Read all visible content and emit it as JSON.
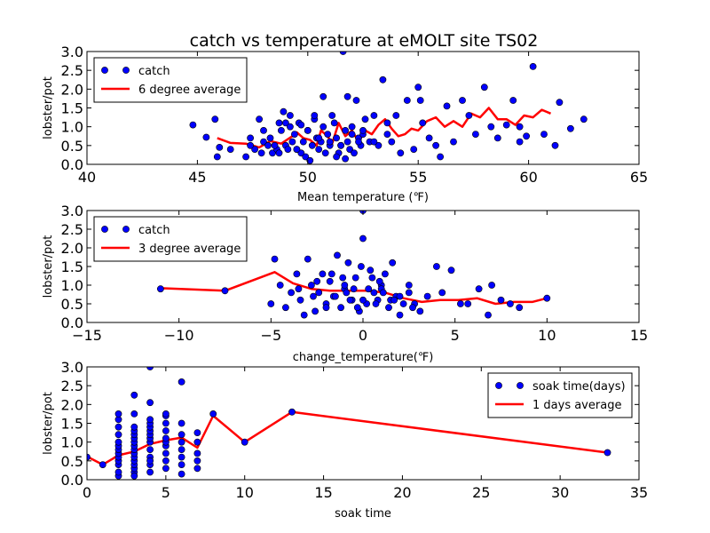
{
  "figure": {
    "title": "catch vs temperature at eMOLT site TS02"
  },
  "colors": {
    "points": "#0000ff",
    "line": "#ff0000",
    "frame": "#000000",
    "background": "#ffffff"
  },
  "chart_data": [
    {
      "type": "scatter",
      "xlabel": "Mean temperature (℉)",
      "ylabel": "lobster/pot",
      "xlim": [
        40,
        65
      ],
      "ylim": [
        0,
        3
      ],
      "xticks": [
        "40",
        "45",
        "50",
        "55",
        "60",
        "65"
      ],
      "yticks": [
        "0.0",
        "0.5",
        "1.0",
        "1.5",
        "2.0",
        "2.5",
        "3.0"
      ],
      "legend": {
        "position": "top-left",
        "entries": [
          "catch",
          "6 degree average"
        ]
      },
      "series": [
        {
          "name": "catch",
          "kind": "points",
          "x": [
            44.8,
            45.4,
            45.9,
            46.0,
            45.8,
            46.5,
            47.2,
            47.4,
            47.6,
            47.8,
            47.9,
            48.0,
            48.2,
            48.3,
            48.4,
            48.6,
            48.7,
            48.8,
            48.9,
            49.0,
            49.1,
            49.2,
            49.3,
            49.4,
            49.5,
            49.6,
            49.7,
            49.8,
            49.9,
            50.0,
            50.1,
            50.2,
            50.3,
            50.4,
            50.5,
            50.6,
            50.7,
            50.8,
            50.9,
            51.0,
            51.1,
            51.2,
            51.3,
            51.4,
            51.5,
            51.6,
            51.7,
            51.8,
            51.9,
            52.0,
            52.1,
            52.2,
            52.3,
            52.4,
            52.5,
            52.6,
            52.8,
            53.0,
            53.2,
            53.4,
            53.6,
            53.8,
            54.0,
            54.2,
            54.5,
            54.8,
            55.0,
            55.2,
            55.5,
            55.8,
            56.0,
            56.3,
            56.6,
            57.0,
            57.3,
            57.6,
            58.0,
            58.3,
            58.6,
            59.0,
            59.3,
            59.6,
            59.9,
            60.2,
            60.7,
            61.2,
            61.4,
            61.9,
            62.5,
            51.7,
            50.7,
            49.7,
            53.6,
            55.1,
            59.6,
            48.0,
            47.4,
            49.0,
            50.0,
            51.0,
            52.0,
            53.0,
            51.5,
            50.5,
            49.5,
            48.5,
            52.5,
            48.7,
            50.3,
            51.3,
            52.3,
            49.2,
            51.8
          ],
          "y": [
            1.05,
            0.72,
            0.2,
            0.45,
            1.2,
            0.4,
            0.2,
            0.7,
            0.4,
            1.2,
            0.3,
            0.6,
            0.5,
            0.7,
            0.3,
            0.4,
            0.3,
            0.9,
            1.4,
            0.5,
            0.4,
            1.3,
            0.6,
            0.8,
            0.4,
            1.1,
            0.3,
            0.6,
            0.2,
            0.9,
            0.1,
            0.5,
            1.2,
            0.7,
            0.4,
            0.6,
            1.0,
            0.3,
            0.8,
            0.5,
            1.3,
            1.1,
            0.7,
            0.3,
            0.5,
            3.0,
            0.9,
            0.6,
            0.4,
            1.0,
            0.3,
            1.7,
            0.7,
            0.5,
            0.8,
            1.2,
            0.6,
            1.3,
            0.5,
            2.25,
            0.8,
            0.6,
            1.3,
            0.3,
            1.7,
            0.4,
            2.05,
            1.1,
            0.7,
            0.5,
            0.2,
            1.55,
            0.6,
            1.7,
            1.3,
            0.8,
            2.05,
            1.0,
            0.7,
            1.05,
            1.7,
            0.6,
            0.75,
            2.6,
            0.8,
            0.5,
            1.65,
            0.95,
            1.2,
            0.15,
            1.8,
            1.05,
            1.1,
            1.7,
            1.0,
            0.9,
            0.5,
            1.1,
            0.9,
            0.6,
            0.8,
            0.6,
            0.5,
            0.7,
            0.4,
            0.5,
            0.9,
            1.1,
            1.3,
            0.2,
            0.6,
            1.0,
            1.8
          ]
        },
        {
          "name": "6 degree average",
          "kind": "line",
          "x": [
            45.9,
            46.5,
            47.2,
            47.8,
            48.3,
            48.8,
            49.3,
            49.5,
            49.8,
            50.1,
            50.4,
            50.6,
            50.9,
            51.1,
            51.4,
            51.7,
            52.0,
            52.3,
            52.6,
            52.9,
            53.2,
            53.5,
            53.8,
            54.1,
            54.4,
            54.7,
            55.0,
            55.4,
            55.8,
            56.2,
            56.6,
            57.0,
            57.4,
            57.8,
            58.2,
            58.6,
            59.0,
            59.4,
            59.8,
            60.2,
            60.6,
            61.0
          ],
          "y": [
            0.7,
            0.57,
            0.55,
            0.45,
            0.62,
            0.55,
            0.75,
            0.85,
            0.7,
            0.65,
            0.5,
            0.9,
            0.75,
            0.55,
            1.1,
            0.75,
            0.9,
            0.6,
            0.9,
            0.8,
            1.05,
            1.2,
            0.95,
            0.75,
            0.8,
            0.95,
            0.9,
            1.15,
            1.25,
            1.0,
            1.15,
            1.0,
            1.35,
            1.25,
            1.5,
            1.2,
            1.2,
            1.05,
            1.3,
            1.25,
            1.45,
            1.35
          ]
        }
      ]
    },
    {
      "type": "scatter",
      "xlabel": "change_temperature(℉)",
      "ylabel": "lobster/pot",
      "xlim": [
        -15,
        15
      ],
      "ylim": [
        0,
        3
      ],
      "xticks": [
        "−15",
        "−10",
        "−5",
        "0",
        "5",
        "10",
        "15"
      ],
      "yticks": [
        "0.0",
        "0.5",
        "1.0",
        "1.5",
        "2.0",
        "2.5",
        "3.0"
      ],
      "legend": {
        "position": "top-left",
        "entries": [
          "catch",
          "3 degree average"
        ]
      },
      "series": [
        {
          "name": "catch",
          "kind": "points",
          "x": [
            -11.0,
            -7.5,
            -5.0,
            -4.8,
            -4.5,
            -4.2,
            -3.9,
            -3.6,
            -3.4,
            -3.2,
            -3.0,
            -2.8,
            -2.6,
            -2.4,
            -2.2,
            -2.0,
            -1.8,
            -1.6,
            -1.4,
            -1.2,
            -1.0,
            -0.8,
            -0.6,
            -0.4,
            -0.2,
            0.0,
            0.2,
            0.4,
            0.6,
            0.8,
            1.0,
            1.2,
            1.4,
            1.6,
            1.8,
            2.0,
            2.2,
            2.5,
            2.8,
            3.1,
            3.5,
            4.0,
            4.3,
            4.8,
            5.3,
            5.7,
            6.3,
            6.8,
            7.0,
            7.5,
            8.0,
            8.5,
            10.0,
            -3.5,
            -2.5,
            -1.5,
            -0.5,
            0.5,
            1.5,
            2.5,
            -2.0,
            -1.0,
            0.0,
            1.0,
            2.0,
            0.0,
            -0.1,
            1.1,
            -1.1,
            0.7,
            -0.7,
            0.3,
            -0.3,
            1.7,
            -1.7,
            2.7,
            -2.7,
            0.9,
            -0.9
          ],
          "y": [
            0.9,
            0.85,
            0.5,
            1.7,
            1.0,
            0.4,
            0.8,
            1.3,
            0.6,
            0.2,
            1.7,
            1.0,
            0.3,
            0.8,
            1.3,
            0.5,
            1.1,
            0.7,
            1.8,
            0.4,
            0.9,
            1.6,
            0.6,
            1.2,
            0.3,
            2.25,
            0.5,
            1.4,
            0.8,
            0.6,
            1.0,
            1.3,
            0.4,
            1.6,
            0.7,
            0.2,
            0.5,
            1.0,
            0.5,
            0.3,
            0.7,
            1.5,
            0.8,
            1.4,
            0.5,
            0.5,
            0.9,
            0.2,
            1.0,
            0.6,
            0.5,
            0.4,
            0.65,
            0.9,
            1.1,
            0.7,
            0.9,
            1.2,
            0.6,
            0.8,
            0.4,
            1.0,
            0.6,
            0.9,
            0.7,
            3.0,
            1.5,
            0.8,
            1.2,
            0.5,
            0.6,
            0.9,
            0.4,
            0.6,
            1.3,
            0.4,
            0.7,
            1.1,
            0.8
          ]
        },
        {
          "name": "3 degree average",
          "kind": "line",
          "x": [
            -11.0,
            -7.5,
            -4.8,
            -3.8,
            -2.8,
            -1.8,
            -0.8,
            0.2,
            1.2,
            2.2,
            3.2,
            4.2,
            5.2,
            6.2,
            7.2,
            8.2,
            9.2,
            10.0
          ],
          "y": [
            0.92,
            0.85,
            1.35,
            1.05,
            0.9,
            0.85,
            0.85,
            0.85,
            0.8,
            0.65,
            0.55,
            0.6,
            0.6,
            0.65,
            0.5,
            0.55,
            0.55,
            0.65
          ]
        }
      ]
    },
    {
      "type": "scatter",
      "xlabel": "soak time",
      "ylabel": "lobster/pot",
      "xlim": [
        0,
        35
      ],
      "ylim": [
        0,
        3
      ],
      "xticks": [
        "0",
        "5",
        "10",
        "15",
        "20",
        "25",
        "30",
        "35"
      ],
      "yticks": [
        "0.0",
        "0.5",
        "1.0",
        "1.5",
        "2.0",
        "2.5",
        "3.0"
      ],
      "legend": {
        "position": "top-right",
        "entries": [
          "soak time(days)",
          "1 days average"
        ]
      },
      "series": [
        {
          "name": "soak time(days)",
          "kind": "points",
          "x": [
            0,
            1,
            2,
            2,
            2,
            2,
            2,
            2,
            2,
            2,
            2,
            2,
            2,
            2,
            2,
            3,
            3,
            3,
            3,
            3,
            3,
            3,
            3,
            3,
            3,
            3,
            3,
            3,
            3,
            3,
            3,
            4,
            4,
            4,
            4,
            4,
            4,
            4,
            4,
            4,
            4,
            4,
            4,
            4,
            4,
            5,
            5,
            5,
            5,
            5,
            5,
            5,
            5,
            5,
            5,
            6,
            6,
            6,
            6,
            6,
            6,
            6,
            6,
            7,
            7,
            7,
            7,
            7,
            8,
            10,
            13,
            33
          ],
          "y": [
            0.6,
            0.4,
            0.1,
            0.2,
            0.4,
            0.5,
            0.6,
            0.7,
            0.8,
            0.9,
            1.0,
            1.2,
            1.4,
            1.6,
            1.75,
            0.2,
            0.3,
            0.4,
            0.5,
            0.6,
            0.7,
            0.8,
            0.9,
            1.0,
            1.1,
            1.2,
            1.3,
            1.4,
            1.75,
            2.25,
            0.1,
            0.2,
            0.4,
            0.6,
            0.8,
            1.0,
            1.1,
            1.2,
            1.3,
            1.4,
            1.5,
            1.6,
            2.05,
            3.0,
            0.5,
            0.3,
            0.5,
            0.7,
            0.9,
            1.0,
            1.1,
            1.3,
            1.5,
            1.7,
            1.75,
            0.15,
            0.4,
            0.6,
            0.8,
            1.0,
            1.2,
            1.5,
            2.6,
            0.3,
            0.5,
            0.7,
            1.0,
            1.25,
            1.75,
            1.0,
            1.8,
            0.72
          ]
        },
        {
          "name": "1 days average",
          "kind": "line",
          "x": [
            0,
            1,
            2,
            3,
            4,
            5,
            6,
            7,
            8,
            10,
            13,
            33
          ],
          "y": [
            0.62,
            0.4,
            0.65,
            0.75,
            0.95,
            1.05,
            1.12,
            0.85,
            1.7,
            1.0,
            1.8,
            0.72
          ]
        }
      ]
    }
  ]
}
